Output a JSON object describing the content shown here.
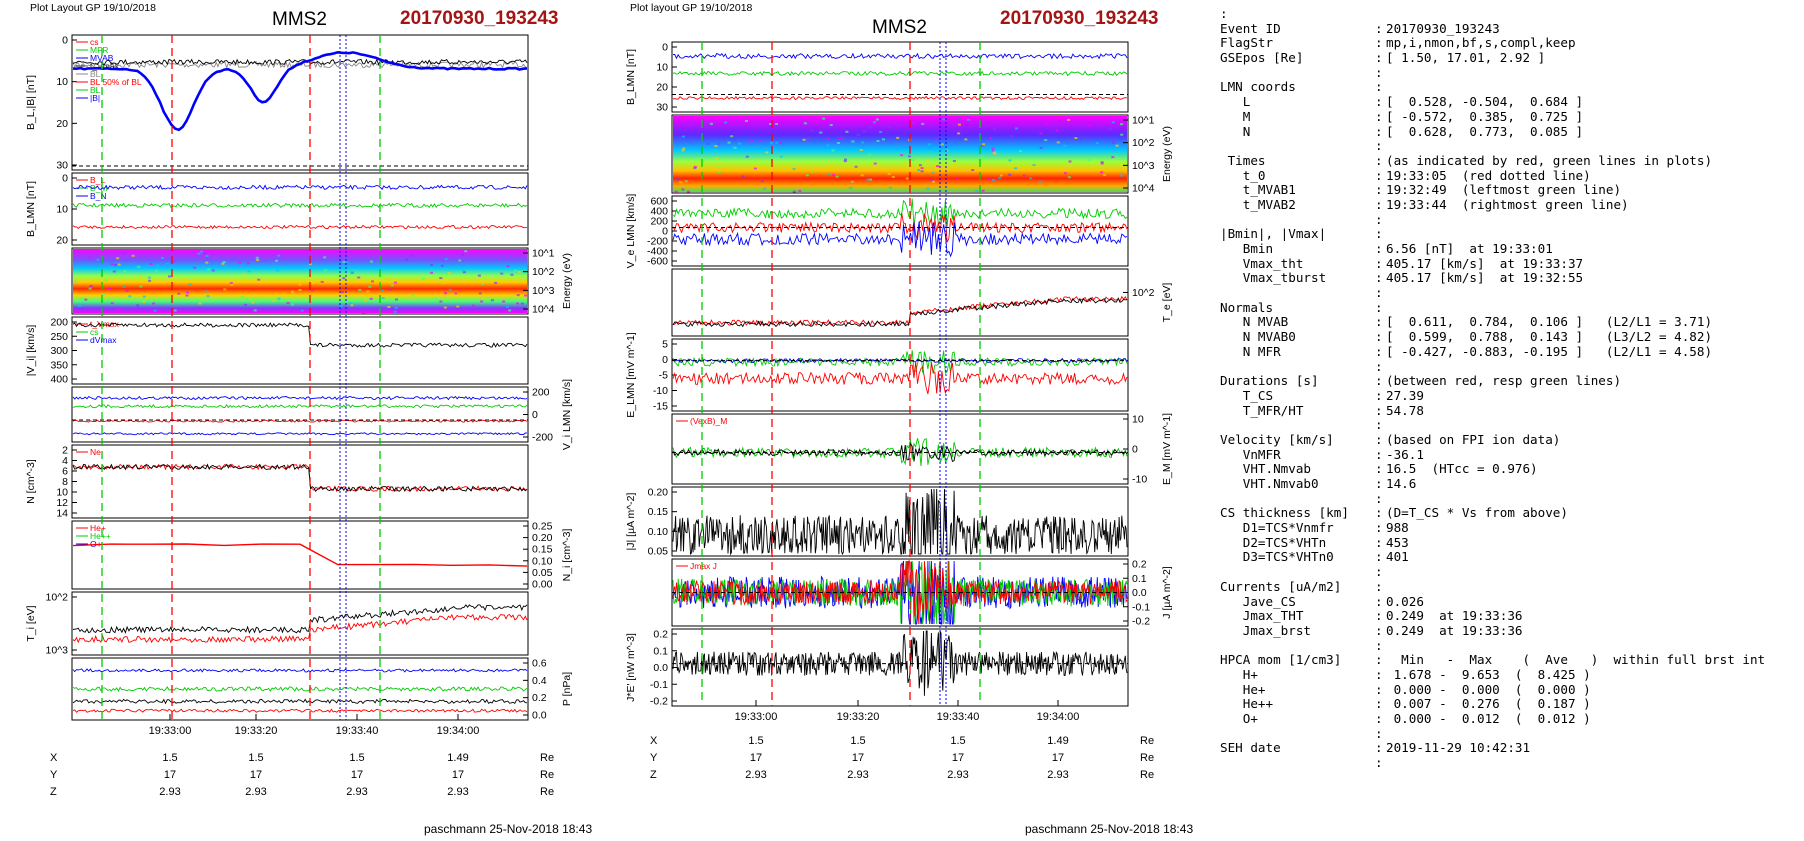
{
  "left_panel": {
    "header": "Plot Layout GP 19/10/2018",
    "title": "MMS2",
    "event": "20170930_193243",
    "footer": "paschmann 25-Nov-2018 18:43"
  },
  "mid_panel": {
    "header": "Plot layout GP 19/10/2018",
    "title": "MMS2",
    "event": "20170930_193243",
    "footer": "paschmann 25-Nov-2018 18:43"
  },
  "colors": {
    "red": "#ff0000",
    "green": "#00cc00",
    "blue": "#0000ff",
    "black": "#000000",
    "grey": "#888888",
    "title_red": "#a31515"
  },
  "chart_data": [
    {
      "type": "line",
      "title": "MMS2",
      "x": [
        "19:33:00",
        "19:33:20",
        "19:33:40",
        "19:34:00"
      ],
      "panels": [
        {
          "ylabel": "B_L,|B| [nT]",
          "yticks": [
            "0",
            "10",
            "20",
            "30"
          ],
          "ylim": [
            0,
            32
          ],
          "legend": [
            "cs",
            "MFR",
            "MVAB",
            "t_Vmax",
            "BL",
            "BL 50% of BL",
            "BL",
            "|B|"
          ]
        },
        {
          "ylabel": "B_LMN [nT]",
          "yticks": [
            "0",
            "10",
            "20"
          ],
          "legend": [
            "B_L",
            "B_M",
            "B_N"
          ]
        },
        {
          "ylabel": "Energy (eV)",
          "yticks": [
            "10^1",
            "10^2",
            "10^3",
            "10^4"
          ],
          "type": "heatmap"
        },
        {
          "ylabel": "|V_i| [km/s]",
          "yticks": [
            "200",
            "250",
            "300",
            "350",
            "400"
          ],
          "ylim": [
            180,
            400
          ],
          "legend": [
            "t_Vmax",
            "cs",
            "dVmax"
          ]
        },
        {
          "ylabel": "V_i LMN [km/s]",
          "yticks": [
            "200",
            "0",
            "-200"
          ]
        },
        {
          "ylabel": "N [cm^-3]",
          "yticks": [
            "2",
            "4",
            "6",
            "8",
            "10",
            "12",
            "14"
          ],
          "legend": [
            "Ne"
          ]
        },
        {
          "ylabel": "N_i [cm^-3]",
          "yticks": [
            "0.25",
            "0.20",
            "0.15",
            "0.10",
            "0.05",
            "0.00"
          ],
          "legend": [
            "He+",
            "He++",
            "O+"
          ]
        },
        {
          "ylabel": "T_i [eV]",
          "yticks": [
            "10^2",
            "10^3"
          ]
        },
        {
          "ylabel": "P [nPa]",
          "yticks": [
            "0.6",
            "0.4",
            "0.2",
            "0.0"
          ]
        }
      ],
      "pos_table": {
        "rows": [
          {
            "name": "X",
            "values": [
              "1.5",
              "1.5",
              "1.5",
              "1.49"
            ],
            "unit": "Re"
          },
          {
            "name": "Y",
            "values": [
              "17",
              "17",
              "17",
              "17"
            ],
            "unit": "Re"
          },
          {
            "name": "Z",
            "values": [
              "2.93",
              "2.93",
              "2.93",
              "2.93"
            ],
            "unit": "Re"
          }
        ]
      }
    },
    {
      "type": "line",
      "title": "MMS2",
      "x": [
        "19:33:00",
        "19:33:20",
        "19:33:40",
        "19:34:00"
      ],
      "panels": [
        {
          "ylabel": "B_LMN [nT]",
          "yticks": [
            "0",
            "10",
            "20",
            "30"
          ]
        },
        {
          "ylabel": "Energy (eV)",
          "yticks": [
            "10^1",
            "10^2",
            "10^3",
            "10^4"
          ],
          "type": "heatmap"
        },
        {
          "ylabel": "V_e LMN [km/s]",
          "yticks": [
            "600",
            "400",
            "200",
            "0",
            "-200",
            "-400",
            "-600"
          ]
        },
        {
          "ylabel": "T_e [eV]",
          "yticks": [
            "10^2"
          ]
        },
        {
          "ylabel": "E_LMN [mV m^-1]",
          "yticks": [
            "5",
            "0",
            "-5",
            "-10",
            "-15"
          ]
        },
        {
          "ylabel": "E_M [mV m^-1]",
          "yticks": [
            "10",
            "0",
            "-10"
          ],
          "legend": [
            "(VexB)_M"
          ]
        },
        {
          "ylabel": "|J| [µA m^-2]",
          "yticks": [
            "0.20",
            "0.15",
            "0.10",
            "0.05"
          ]
        },
        {
          "ylabel": "J [µA m^-2]",
          "yticks": [
            "0.2",
            "0.1",
            "0.0",
            "-0.1",
            "-0.2"
          ],
          "legend": [
            "Jmax J"
          ]
        },
        {
          "ylabel": "J*E' [nW m^-3]",
          "yticks": [
            "0.2",
            "0.1",
            "0.0",
            "-0.1",
            "-0.2"
          ]
        }
      ],
      "pos_table": {
        "rows": [
          {
            "name": "X",
            "values": [
              "1.5",
              "1.5",
              "1.5",
              "1.49"
            ],
            "unit": "Re"
          },
          {
            "name": "Y",
            "values": [
              "17",
              "17",
              "17",
              "17"
            ],
            "unit": "Re"
          },
          {
            "name": "Z",
            "values": [
              "2.93",
              "2.93",
              "2.93",
              "2.93"
            ],
            "unit": "Re"
          }
        ]
      }
    }
  ],
  "info_lines": [
    {
      "k": ":",
      "c": "",
      "v": ""
    },
    {
      "k": "Event ID",
      "c": ":",
      "v": "20170930_193243"
    },
    {
      "k": "FlagStr",
      "c": ":",
      "v": "mp,i,nmon,bf,s,compl,keep"
    },
    {
      "k": "GSEpos [Re]",
      "c": ":",
      "v": "[ 1.50, 17.01, 2.92 ]"
    },
    {
      "k": "",
      "c": ":",
      "v": ""
    },
    {
      "k": "LMN coords",
      "c": ":",
      "v": ""
    },
    {
      "k": "   L",
      "c": ":",
      "v": "[  0.528, -0.504,  0.684 ]"
    },
    {
      "k": "   M",
      "c": ":",
      "v": "[ -0.572,  0.385,  0.725 ]"
    },
    {
      "k": "   N",
      "c": ":",
      "v": "[  0.628,  0.773,  0.085 ]"
    },
    {
      "k": "",
      "c": ":",
      "v": ""
    },
    {
      "k": " Times",
      "c": ":",
      "v": "(as indicated by red, green lines in plots)"
    },
    {
      "k": "   t_0",
      "c": ":",
      "v": "19:33:05  (red dotted line)"
    },
    {
      "k": "   t_MVAB1",
      "c": ":",
      "v": "19:32:49  (leftmost green line)"
    },
    {
      "k": "   t_MVAB2",
      "c": ":",
      "v": "19:33:44  (rightmost green line)"
    },
    {
      "k": "",
      "c": ":",
      "v": ""
    },
    {
      "k": "|Bmin|, |Vmax|",
      "c": ":",
      "v": ""
    },
    {
      "k": "   Bmin",
      "c": ":",
      "v": "6.56 [nT]  at 19:33:01"
    },
    {
      "k": "   Vmax_tht",
      "c": ":",
      "v": "405.17 [km/s]  at 19:33:37"
    },
    {
      "k": "   Vmax_tburst",
      "c": ":",
      "v": "405.17 [km/s]  at 19:32:55"
    },
    {
      "k": "",
      "c": ":",
      "v": ""
    },
    {
      "k": "Normals",
      "c": ":",
      "v": ""
    },
    {
      "k": "   N MVAB",
      "c": ":",
      "v": "[  0.611,  0.784,  0.106 ]   (L2/L1 = 3.71)"
    },
    {
      "k": "   N MVAB0",
      "c": ":",
      "v": "[  0.599,  0.788,  0.143 ]   (L3/L2 = 4.82)"
    },
    {
      "k": "   N MFR",
      "c": ":",
      "v": "[ -0.427, -0.883, -0.195 ]   (L2/L1 = 4.58)"
    },
    {
      "k": "",
      "c": ":",
      "v": ""
    },
    {
      "k": "Durations [s]",
      "c": ":",
      "v": "(between red, resp green lines)"
    },
    {
      "k": "   T_CS",
      "c": ":",
      "v": "27.39"
    },
    {
      "k": "   T_MFR/HT",
      "c": ":",
      "v": "54.78"
    },
    {
      "k": "",
      "c": ":",
      "v": ""
    },
    {
      "k": "Velocity [km/s]",
      "c": ":",
      "v": "(based on FPI ion data)"
    },
    {
      "k": "   VnMFR",
      "c": ":",
      "v": "-36.1"
    },
    {
      "k": "   VHT.Nmvab",
      "c": ":",
      "v": "16.5  (HTcc = 0.976)"
    },
    {
      "k": "   VHT.Nmvab0",
      "c": ":",
      "v": "14.6"
    },
    {
      "k": "",
      "c": ":",
      "v": ""
    },
    {
      "k": "CS thickness [km]",
      "c": ":",
      "v": "(D=T_CS * Vs from above)"
    },
    {
      "k": "   D1=TCS*Vnmfr",
      "c": ":",
      "v": "988"
    },
    {
      "k": "   D2=TCS*VHTn",
      "c": ":",
      "v": "453"
    },
    {
      "k": "   D3=TCS*VHTn0",
      "c": ":",
      "v": "401"
    },
    {
      "k": "",
      "c": ":",
      "v": ""
    },
    {
      "k": "Currents [uA/m2]",
      "c": ":",
      "v": ""
    },
    {
      "k": "   Jave_CS",
      "c": ":",
      "v": "0.026"
    },
    {
      "k": "   Jmax_THT",
      "c": ":",
      "v": "0.249  at 19:33:36"
    },
    {
      "k": "   Jmax_brst",
      "c": ":",
      "v": "0.249  at 19:33:36"
    },
    {
      "k": "",
      "c": ":",
      "v": ""
    },
    {
      "k": "HPCA mom [1/cm3]",
      "c": ":",
      "v": "  Min   -  Max    (  Ave   )  within full brst int"
    },
    {
      "k": "   H+",
      "c": ":",
      "v": " 1.678 -  9.653  (  8.425 )"
    },
    {
      "k": "   He+",
      "c": ":",
      "v": " 0.000 -  0.000  (  0.000 )"
    },
    {
      "k": "   He++",
      "c": ":",
      "v": " 0.007 -  0.276  (  0.187 )"
    },
    {
      "k": "   O+",
      "c": ":",
      "v": " 0.000 -  0.012  (  0.012 )"
    },
    {
      "k": "",
      "c": ":",
      "v": ""
    },
    {
      "k": "SEH date",
      "c": ":",
      "v": "2019-11-29 10:42:31"
    },
    {
      "k": "",
      "c": ":",
      "v": ""
    }
  ]
}
